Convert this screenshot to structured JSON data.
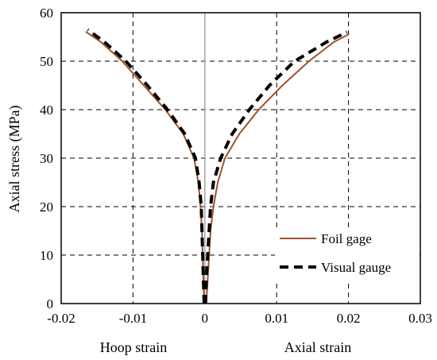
{
  "chart_data": {
    "type": "line",
    "title": "",
    "ylabel": "Axial stress (MPa)",
    "xlabel_left": "Hoop strain",
    "xlabel_right": "Axial strain",
    "xlim": [
      -0.02,
      0.03
    ],
    "ylim": [
      0,
      60
    ],
    "xticks": [
      "-0.02",
      "-0.01",
      "0",
      "0.01",
      "0.02",
      "0.03"
    ],
    "yticks": [
      "0",
      "10",
      "20",
      "30",
      "40",
      "50",
      "60"
    ],
    "grid": true,
    "legend_position": "bottom-right",
    "series": [
      {
        "name": "Foil gage",
        "style": "solid",
        "color": "#a0522d",
        "segments": [
          [
            [
              -0.0001,
              0
            ],
            [
              -0.0002,
              5
            ],
            [
              -0.0003,
              10
            ],
            [
              -0.0004,
              15
            ],
            [
              -0.0006,
              20
            ],
            [
              -0.0009,
              25
            ],
            [
              -0.0015,
              30
            ],
            [
              -0.003,
              35
            ],
            [
              -0.0055,
              40
            ],
            [
              -0.0085,
              45
            ],
            [
              -0.0115,
              50
            ],
            [
              -0.0145,
              54
            ],
            [
              -0.0165,
              56
            ]
          ],
          [
            [
              0.0002,
              0
            ],
            [
              0.0004,
              5
            ],
            [
              0.0006,
              10
            ],
            [
              0.0008,
              15
            ],
            [
              0.0012,
              20
            ],
            [
              0.0018,
              25
            ],
            [
              0.0028,
              30
            ],
            [
              0.0048,
              35
            ],
            [
              0.0075,
              40
            ],
            [
              0.0108,
              45
            ],
            [
              0.0145,
              50
            ],
            [
              0.018,
              54
            ],
            [
              0.02,
              55.5
            ]
          ]
        ]
      },
      {
        "name": "Visual gauge",
        "style": "dashed",
        "color": "#000000",
        "segments": [
          [
            [
              -0.0001,
              0
            ],
            [
              -0.0002,
              5
            ],
            [
              -0.0003,
              10
            ],
            [
              -0.0004,
              15
            ],
            [
              -0.0005,
              20
            ],
            [
              -0.0008,
              25
            ],
            [
              -0.0013,
              30
            ],
            [
              -0.0028,
              35
            ],
            [
              -0.0052,
              40
            ],
            [
              -0.008,
              45
            ],
            [
              -0.011,
              50
            ],
            [
              -0.014,
              54
            ],
            [
              -0.0163,
              56.5
            ]
          ],
          [
            [
              0.0001,
              0
            ],
            [
              0.0002,
              5
            ],
            [
              0.0004,
              10
            ],
            [
              0.0006,
              15
            ],
            [
              0.0008,
              20
            ],
            [
              0.0012,
              25
            ],
            [
              0.0022,
              30
            ],
            [
              0.0038,
              35
            ],
            [
              0.0062,
              40
            ],
            [
              0.009,
              45
            ],
            [
              0.0125,
              50
            ],
            [
              0.017,
              54
            ],
            [
              0.0198,
              56
            ]
          ]
        ]
      }
    ]
  }
}
